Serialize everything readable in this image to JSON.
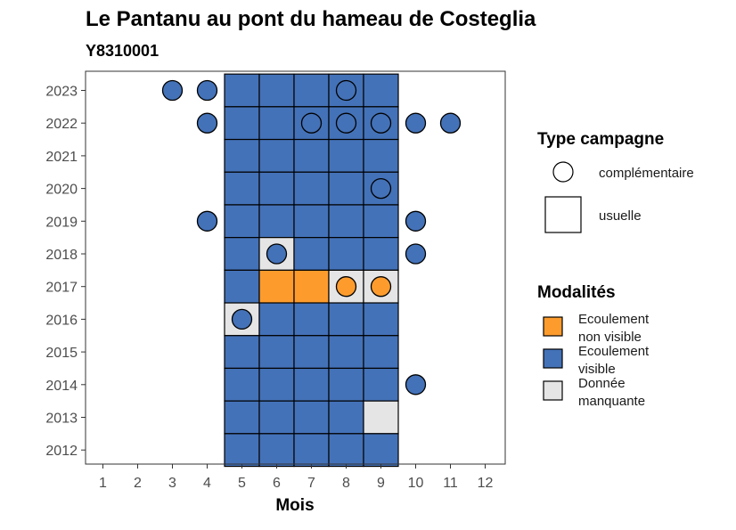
{
  "chart_data": {
    "type": "heatmap",
    "title": "Le Pantanu au pont du hameau de Costeglia",
    "subtitle": "Y8310001",
    "xlabel": "Mois",
    "ylabel": "",
    "x_ticks": [
      "1",
      "2",
      "3",
      "4",
      "5",
      "6",
      "7",
      "8",
      "9",
      "10",
      "11",
      "12"
    ],
    "y_ticks": [
      "2012",
      "2013",
      "2014",
      "2015",
      "2016",
      "2017",
      "2018",
      "2019",
      "2020",
      "2021",
      "2022",
      "2023"
    ],
    "colors": {
      "visible": "#4472b8",
      "non_visible": "#fd9c2d",
      "missing": "#e5e5e5",
      "outline": "#000000"
    },
    "legend_type": {
      "title": "Type campagne",
      "items": [
        {
          "key": "complementaire",
          "label": "complémentaire",
          "shape": "circle"
        },
        {
          "key": "usuelle",
          "label": "usuelle",
          "shape": "square"
        }
      ]
    },
    "legend_modalites": {
      "title": "Modalités",
      "items": [
        {
          "key": "non_visible",
          "label_lines": [
            "Ecoulement",
            "non visible"
          ]
        },
        {
          "key": "visible",
          "label_lines": [
            "Ecoulement",
            "visible"
          ]
        },
        {
          "key": "missing",
          "label_lines": [
            "Donnée",
            "manquante"
          ]
        }
      ]
    },
    "usuelle": [
      {
        "year": 2023,
        "month": 5,
        "status": "visible"
      },
      {
        "year": 2023,
        "month": 6,
        "status": "visible"
      },
      {
        "year": 2023,
        "month": 7,
        "status": "visible"
      },
      {
        "year": 2023,
        "month": 8,
        "status": "visible"
      },
      {
        "year": 2023,
        "month": 9,
        "status": "visible"
      },
      {
        "year": 2022,
        "month": 5,
        "status": "visible"
      },
      {
        "year": 2022,
        "month": 6,
        "status": "visible"
      },
      {
        "year": 2022,
        "month": 7,
        "status": "visible"
      },
      {
        "year": 2022,
        "month": 8,
        "status": "visible"
      },
      {
        "year": 2022,
        "month": 9,
        "status": "visible"
      },
      {
        "year": 2021,
        "month": 5,
        "status": "visible"
      },
      {
        "year": 2021,
        "month": 6,
        "status": "visible"
      },
      {
        "year": 2021,
        "month": 7,
        "status": "visible"
      },
      {
        "year": 2021,
        "month": 8,
        "status": "visible"
      },
      {
        "year": 2021,
        "month": 9,
        "status": "visible"
      },
      {
        "year": 2020,
        "month": 5,
        "status": "visible"
      },
      {
        "year": 2020,
        "month": 6,
        "status": "visible"
      },
      {
        "year": 2020,
        "month": 7,
        "status": "visible"
      },
      {
        "year": 2020,
        "month": 8,
        "status": "visible"
      },
      {
        "year": 2020,
        "month": 9,
        "status": "visible"
      },
      {
        "year": 2019,
        "month": 5,
        "status": "visible"
      },
      {
        "year": 2019,
        "month": 6,
        "status": "visible"
      },
      {
        "year": 2019,
        "month": 7,
        "status": "visible"
      },
      {
        "year": 2019,
        "month": 8,
        "status": "visible"
      },
      {
        "year": 2019,
        "month": 9,
        "status": "visible"
      },
      {
        "year": 2018,
        "month": 5,
        "status": "visible"
      },
      {
        "year": 2018,
        "month": 6,
        "status": "missing"
      },
      {
        "year": 2018,
        "month": 7,
        "status": "visible"
      },
      {
        "year": 2018,
        "month": 8,
        "status": "visible"
      },
      {
        "year": 2018,
        "month": 9,
        "status": "visible"
      },
      {
        "year": 2017,
        "month": 5,
        "status": "visible"
      },
      {
        "year": 2017,
        "month": 6,
        "status": "non_visible"
      },
      {
        "year": 2017,
        "month": 7,
        "status": "non_visible"
      },
      {
        "year": 2017,
        "month": 8,
        "status": "missing"
      },
      {
        "year": 2017,
        "month": 9,
        "status": "missing"
      },
      {
        "year": 2016,
        "month": 5,
        "status": "missing"
      },
      {
        "year": 2016,
        "month": 6,
        "status": "visible"
      },
      {
        "year": 2016,
        "month": 7,
        "status": "visible"
      },
      {
        "year": 2016,
        "month": 8,
        "status": "visible"
      },
      {
        "year": 2016,
        "month": 9,
        "status": "visible"
      },
      {
        "year": 2015,
        "month": 5,
        "status": "visible"
      },
      {
        "year": 2015,
        "month": 6,
        "status": "visible"
      },
      {
        "year": 2015,
        "month": 7,
        "status": "visible"
      },
      {
        "year": 2015,
        "month": 8,
        "status": "visible"
      },
      {
        "year": 2015,
        "month": 9,
        "status": "visible"
      },
      {
        "year": 2014,
        "month": 5,
        "status": "visible"
      },
      {
        "year": 2014,
        "month": 6,
        "status": "visible"
      },
      {
        "year": 2014,
        "month": 7,
        "status": "visible"
      },
      {
        "year": 2014,
        "month": 8,
        "status": "visible"
      },
      {
        "year": 2014,
        "month": 9,
        "status": "visible"
      },
      {
        "year": 2013,
        "month": 5,
        "status": "visible"
      },
      {
        "year": 2013,
        "month": 6,
        "status": "visible"
      },
      {
        "year": 2013,
        "month": 7,
        "status": "visible"
      },
      {
        "year": 2013,
        "month": 8,
        "status": "visible"
      },
      {
        "year": 2013,
        "month": 9,
        "status": "missing"
      },
      {
        "year": 2012,
        "month": 5,
        "status": "visible"
      },
      {
        "year": 2012,
        "month": 6,
        "status": "visible"
      },
      {
        "year": 2012,
        "month": 7,
        "status": "visible"
      },
      {
        "year": 2012,
        "month": 8,
        "status": "visible"
      },
      {
        "year": 2012,
        "month": 9,
        "status": "visible"
      }
    ],
    "complementaire": [
      {
        "year": 2023,
        "month": 3,
        "status": "visible"
      },
      {
        "year": 2023,
        "month": 4,
        "status": "visible"
      },
      {
        "year": 2023,
        "month": 8,
        "status": "visible"
      },
      {
        "year": 2022,
        "month": 4,
        "status": "visible"
      },
      {
        "year": 2022,
        "month": 7,
        "status": "visible"
      },
      {
        "year": 2022,
        "month": 8,
        "status": "visible"
      },
      {
        "year": 2022,
        "month": 9,
        "status": "visible"
      },
      {
        "year": 2022,
        "month": 10,
        "status": "visible"
      },
      {
        "year": 2022,
        "month": 11,
        "status": "visible"
      },
      {
        "year": 2020,
        "month": 9,
        "status": "visible"
      },
      {
        "year": 2019,
        "month": 4,
        "status": "visible"
      },
      {
        "year": 2019,
        "month": 10,
        "status": "visible"
      },
      {
        "year": 2018,
        "month": 6,
        "status": "visible"
      },
      {
        "year": 2018,
        "month": 10,
        "status": "visible"
      },
      {
        "year": 2017,
        "month": 8,
        "status": "non_visible"
      },
      {
        "year": 2017,
        "month": 9,
        "status": "non_visible"
      },
      {
        "year": 2016,
        "month": 5,
        "status": "visible"
      },
      {
        "year": 2014,
        "month": 10,
        "status": "visible"
      }
    ]
  }
}
